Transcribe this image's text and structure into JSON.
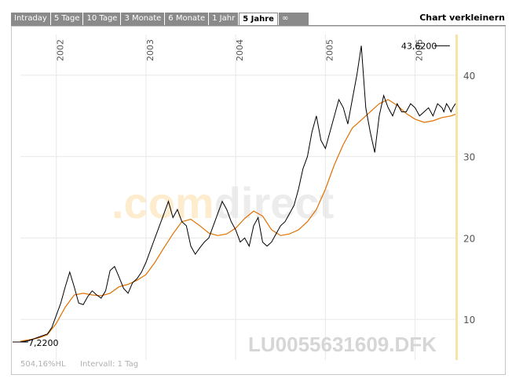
{
  "tabs": [
    {
      "label": "Intraday",
      "active": false
    },
    {
      "label": "5 Tage",
      "active": false
    },
    {
      "label": "10 Tage",
      "active": false
    },
    {
      "label": "3 Monate",
      "active": false
    },
    {
      "label": "6 Monate",
      "active": false
    },
    {
      "label": "1 Jahr",
      "active": false
    },
    {
      "label": "5 Jahre",
      "active": true
    },
    {
      "label": "∞",
      "active": false
    }
  ],
  "shrink_label": "Chart verkleinern",
  "watermark_brand": ".comdirect",
  "watermark_brand_parts": [
    ".com",
    "direct"
  ],
  "watermark_symbol": "LU0055631609.DFK",
  "footer": {
    "performance": "504,16%HL",
    "interval": "Intervall: 1 Tag"
  },
  "colors": {
    "price": "#000000",
    "average": "#e07000",
    "today_marker": "#f7e3a6",
    "grid": "#e8e8e8"
  },
  "chart_data": {
    "type": "line",
    "title": "",
    "xlabel": "",
    "ylabel": "",
    "x_tick_labels": [
      "2002",
      "2003",
      "2004",
      "2005",
      "2006"
    ],
    "y_ticks": [
      10,
      20,
      30,
      40
    ],
    "ylim": [
      5,
      45
    ],
    "xlim": [
      2001.6,
      2006.45
    ],
    "grid": true,
    "annotations": [
      {
        "label": "43,6200",
        "x": 2006.3,
        "y": 43.62
      },
      {
        "label": "7,2200",
        "x": 2001.6,
        "y": 7.22
      }
    ],
    "series": [
      {
        "role": "price",
        "x": [
          2001.6,
          2001.7,
          2001.8,
          2001.9,
          2001.95,
          2002.0,
          2002.05,
          2002.1,
          2002.15,
          2002.2,
          2002.25,
          2002.3,
          2002.35,
          2002.4,
          2002.45,
          2002.5,
          2002.55,
          2002.6,
          2002.65,
          2002.7,
          2002.75,
          2002.8,
          2002.85,
          2002.9,
          2002.95,
          2003.0,
          2003.05,
          2003.1,
          2003.15,
          2003.2,
          2003.25,
          2003.3,
          2003.35,
          2003.4,
          2003.45,
          2003.5,
          2003.55,
          2003.6,
          2003.65,
          2003.7,
          2003.75,
          2003.8,
          2003.85,
          2003.9,
          2003.95,
          2004.0,
          2004.05,
          2004.1,
          2004.15,
          2004.2,
          2004.25,
          2004.3,
          2004.35,
          2004.4,
          2004.45,
          2004.5,
          2004.55,
          2004.6,
          2004.65,
          2004.7,
          2004.75,
          2004.8,
          2004.85,
          2004.9,
          2004.95,
          2005.0,
          2005.05,
          2005.1,
          2005.15,
          2005.2,
          2005.25,
          2005.3,
          2005.35,
          2005.4,
          2005.45,
          2005.5,
          2005.55,
          2005.6,
          2005.65,
          2005.7,
          2005.75,
          2005.8,
          2005.85,
          2005.9,
          2005.95,
          2006.0,
          2006.05,
          2006.1,
          2006.15,
          2006.2,
          2006.25,
          2006.3,
          2006.32,
          2006.35,
          2006.38,
          2006.4,
          2006.42,
          2006.45
        ],
        "y": [
          7.22,
          7.4,
          7.8,
          8.2,
          9.0,
          10.5,
          12.0,
          14.0,
          15.8,
          14.0,
          12.0,
          11.8,
          12.8,
          13.5,
          13.0,
          12.6,
          13.5,
          16.0,
          16.5,
          15.2,
          13.8,
          13.2,
          14.5,
          15.0,
          15.8,
          17.0,
          18.5,
          20.0,
          21.5,
          23.0,
          24.5,
          22.5,
          23.5,
          22.0,
          21.5,
          19.0,
          18.0,
          18.8,
          19.5,
          20.0,
          21.5,
          23.0,
          24.5,
          23.5,
          22.0,
          21.0,
          19.5,
          20.0,
          19.0,
          21.5,
          22.5,
          19.5,
          19.0,
          19.5,
          20.5,
          21.5,
          22.0,
          23.0,
          24.0,
          26.0,
          28.5,
          30.0,
          33.0,
          35.0,
          32.0,
          31.0,
          33.0,
          35.0,
          37.0,
          36.0,
          34.0,
          37.0,
          40.0,
          43.62,
          36.0,
          33.0,
          30.5,
          35.0,
          37.5,
          36.0,
          35.0,
          36.5,
          35.5,
          35.5,
          36.5,
          36.0,
          35.0,
          35.5,
          36.0,
          35.0,
          36.5,
          36.0,
          35.5,
          36.5,
          36.0,
          35.5,
          36.0,
          36.5
        ]
      },
      {
        "role": "moving-average",
        "x": [
          2001.6,
          2001.7,
          2001.8,
          2001.9,
          2002.0,
          2002.1,
          2002.2,
          2002.3,
          2002.4,
          2002.5,
          2002.6,
          2002.7,
          2002.8,
          2002.9,
          2003.0,
          2003.1,
          2003.2,
          2003.3,
          2003.4,
          2003.5,
          2003.6,
          2003.7,
          2003.8,
          2003.9,
          2004.0,
          2004.1,
          2004.2,
          2004.3,
          2004.4,
          2004.5,
          2004.6,
          2004.7,
          2004.8,
          2004.9,
          2005.0,
          2005.1,
          2005.2,
          2005.3,
          2005.4,
          2005.5,
          2005.6,
          2005.7,
          2005.8,
          2005.9,
          2006.0,
          2006.1,
          2006.2,
          2006.3,
          2006.4,
          2006.45
        ],
        "y": [
          7.3,
          7.5,
          7.7,
          8.1,
          9.5,
          11.5,
          13.0,
          13.2,
          13.0,
          12.9,
          13.2,
          14.0,
          14.3,
          14.8,
          15.5,
          17.0,
          18.8,
          20.5,
          22.0,
          22.3,
          21.5,
          20.6,
          20.3,
          20.5,
          21.2,
          22.4,
          23.3,
          22.7,
          21.0,
          20.3,
          20.5,
          21.0,
          22.0,
          23.5,
          26.0,
          29.0,
          31.5,
          33.5,
          34.5,
          35.5,
          36.5,
          37.0,
          36.3,
          35.3,
          34.6,
          34.2,
          34.4,
          34.8,
          35.0,
          35.2
        ]
      }
    ]
  }
}
